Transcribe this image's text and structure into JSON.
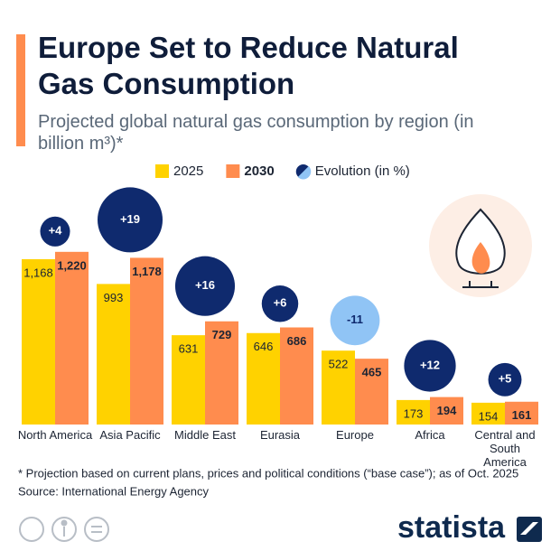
{
  "chart_data": {
    "type": "bar",
    "title": "Europe Set to Reduce Natural Gas Consumption",
    "subtitle": "Projected global natural gas consumption by region (in billion m³)*",
    "categories": [
      "North America",
      "Asia Pacific",
      "Middle East",
      "Eurasia",
      "Europe",
      "Africa",
      "Central and South America"
    ],
    "series": [
      {
        "name": "2025",
        "color": "#ffd200",
        "values": [
          1168,
          993,
          631,
          646,
          522,
          173,
          154
        ],
        "value_labels": [
          "1,168",
          "993",
          "631",
          "646",
          "522",
          "173",
          "154"
        ]
      },
      {
        "name": "2030",
        "color": "#ff8c4e",
        "values": [
          1220,
          1178,
          729,
          686,
          465,
          194,
          161
        ],
        "value_labels": [
          "1,220",
          "1,178",
          "729",
          "686",
          "465",
          "194",
          "161"
        ]
      }
    ],
    "evolution": {
      "name": "Evolution (in %)",
      "color": "#0f2a6e",
      "negative_color": "#90c4f5",
      "values": [
        4,
        19,
        16,
        6,
        -11,
        12,
        5
      ],
      "value_labels": [
        "+4",
        "+19",
        "+16",
        "+6",
        "-11",
        "+12",
        "+5"
      ]
    },
    "ylim": [
      0,
      1300
    ],
    "footnote": "* Projection based on current plans, prices and political conditions (“base case”); as of Oct. 2025",
    "source": "Source: International Energy Agency",
    "brand": "statista"
  }
}
